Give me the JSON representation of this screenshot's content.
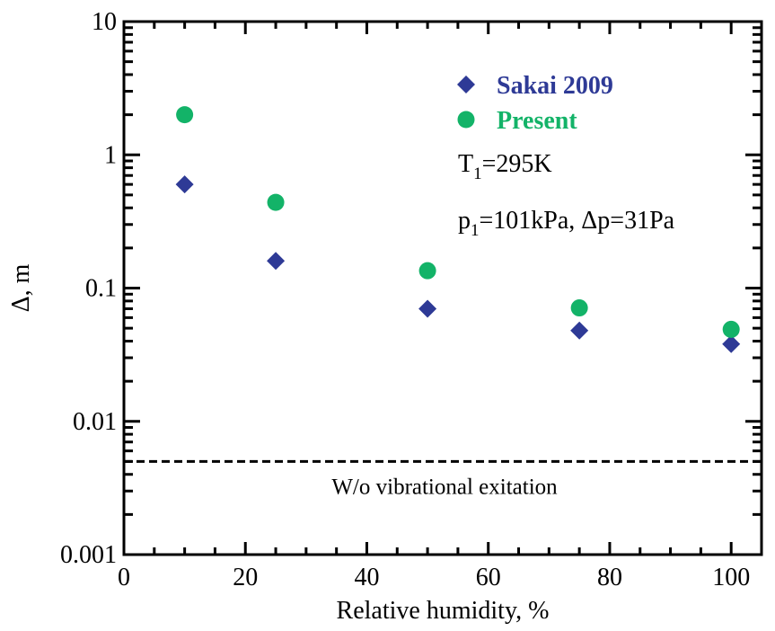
{
  "chart_data": {
    "type": "scatter",
    "xlabel": "Relative humidity, %",
    "ylabel": "Δ, m",
    "xlim": [
      0,
      105
    ],
    "ylim": [
      0.001,
      10
    ],
    "yscale": "log",
    "x_ticks": [
      0,
      20,
      40,
      60,
      80,
      100
    ],
    "x_tick_labels": [
      "0",
      "20",
      "40",
      "60",
      "80",
      "100"
    ],
    "y_ticks": [
      0.001,
      0.01,
      0.1,
      1,
      10
    ],
    "y_tick_labels": [
      "0.001",
      "0.01",
      "0.1",
      "1",
      "10"
    ],
    "grid": false,
    "legend_position": "top-right",
    "series": [
      {
        "name": "Sakai 2009",
        "marker": "diamond",
        "color": "#2e3a96",
        "x": [
          10,
          25,
          50,
          75,
          100
        ],
        "y": [
          0.6,
          0.16,
          0.07,
          0.048,
          0.038
        ]
      },
      {
        "name": "Present",
        "marker": "circle",
        "color": "#13b368",
        "x": [
          10,
          25,
          50,
          75,
          100
        ],
        "y": [
          2.0,
          0.44,
          0.135,
          0.071,
          0.049
        ]
      }
    ],
    "reference_line": {
      "y": 0.005,
      "style": "dashed",
      "label": "W/o vibrational exitation"
    },
    "annotations": {
      "temperature": {
        "symbol": "T",
        "subscript": "1",
        "text": "=295K"
      },
      "pressure": {
        "symbol": "p",
        "subscript": "1",
        "text": "=101kPa, Δp=31Pa"
      }
    }
  }
}
